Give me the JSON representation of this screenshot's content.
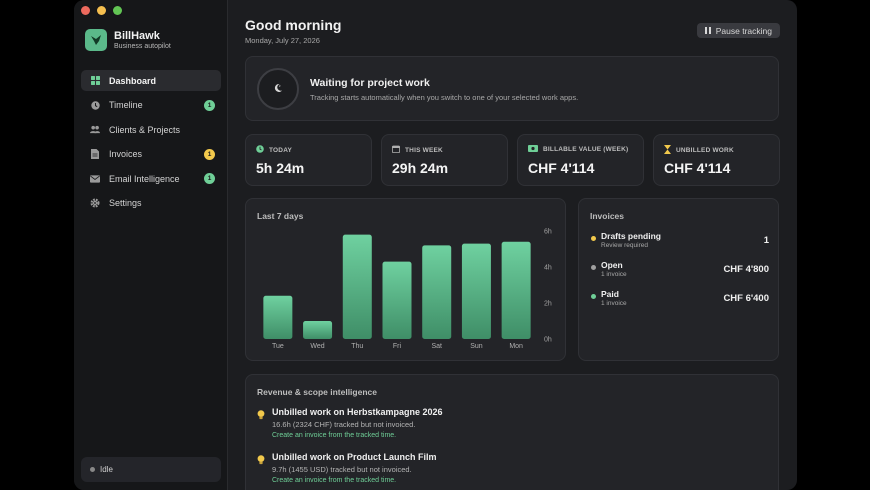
{
  "window": {
    "traffic_colors": [
      "#ed6a5e",
      "#f5bf4f",
      "#62c554"
    ]
  },
  "sidebar": {
    "brand_name": "BillHawk",
    "brand_sub": "Business autopilot",
    "items": [
      {
        "label": "Dashboard",
        "icon": "grid-icon",
        "active": true
      },
      {
        "label": "Timeline",
        "icon": "clock-icon",
        "badge": "1",
        "badge_color": "#6fcf97"
      },
      {
        "label": "Clients & Projects",
        "icon": "people-icon"
      },
      {
        "label": "Invoices",
        "icon": "document-icon",
        "badge": "1",
        "badge_color": "#f2c94c"
      },
      {
        "label": "Email Intelligence",
        "icon": "envelope-icon",
        "badge": "1",
        "badge_color": "#6fcf97"
      },
      {
        "label": "Settings",
        "icon": "gear-icon"
      }
    ],
    "status": "Idle"
  },
  "header": {
    "greeting": "Good morning",
    "date": "Monday, July 27, 2026",
    "pause_label": "Pause tracking"
  },
  "waiting": {
    "title": "Waiting for project work",
    "subtitle": "Tracking starts automatically when you switch to one of your selected work apps."
  },
  "stats": [
    {
      "label": "TODAY",
      "value": "5h 24m",
      "icon": "clock-icon",
      "color": "#6fcf97"
    },
    {
      "label": "THIS WEEK",
      "value": "29h 24m",
      "icon": "calendar-icon",
      "color": "#b0b0b0"
    },
    {
      "label": "BILLABLE VALUE (WEEK)",
      "value": "CHF 4'114",
      "icon": "cash-icon",
      "color": "#6fcf97"
    },
    {
      "label": "UNBILLED WORK",
      "value": "CHF 4'114",
      "icon": "hourglass-icon",
      "color": "#f2c94c"
    }
  ],
  "chart_data": {
    "type": "bar",
    "title": "Last 7 days",
    "categories": [
      "Tue",
      "Wed",
      "Thu",
      "Fri",
      "Sat",
      "Sun",
      "Mon"
    ],
    "values": [
      2.4,
      1.0,
      5.8,
      4.3,
      5.2,
      5.3,
      5.4
    ],
    "ylim": [
      0,
      6
    ],
    "yticks": [
      "0h",
      "2h",
      "4h",
      "6h"
    ],
    "ytick_values": [
      0,
      2,
      4,
      6
    ],
    "color": "#5bc08e"
  },
  "invoices": {
    "title": "Invoices",
    "rows": [
      {
        "name": "Drafts pending",
        "sub": "Review required",
        "value": "1",
        "color": "#f2c94c"
      },
      {
        "name": "Open",
        "sub": "1 invoice",
        "value": "CHF 4'800",
        "color": "#a0a0a0"
      },
      {
        "name": "Paid",
        "sub": "1 invoice",
        "value": "CHF 6'400",
        "color": "#6fcf97"
      }
    ]
  },
  "revenue": {
    "title": "Revenue & scope intelligence",
    "items": [
      {
        "title": "Unbilled work on Herbstkampagne 2026",
        "sub": "16.6h (2324 CHF) tracked but not invoiced.",
        "link": "Create an invoice from the tracked time."
      },
      {
        "title": "Unbilled work on Product Launch Film",
        "sub": "9.7h (1455 USD) tracked but not invoiced.",
        "link": "Create an invoice from the tracked time."
      }
    ]
  }
}
